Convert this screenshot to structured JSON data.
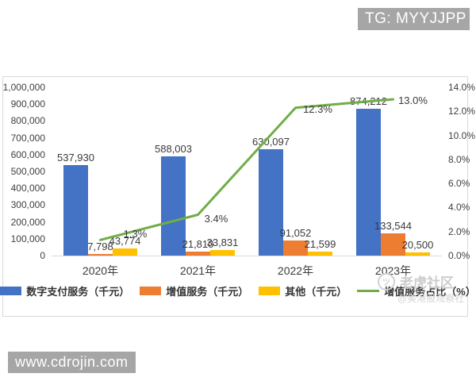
{
  "badges": {
    "telegram": "TG: MYYJJPP",
    "website": "www.cdrojin.com"
  },
  "watermarks": {
    "community": "老虎社区",
    "account": "@美港股观察社"
  },
  "chart_data": {
    "type": "bar",
    "subtype": "grouped bars with secondary-axis line",
    "categories": [
      "2020年",
      "2021年",
      "2022年",
      "2023年"
    ],
    "series": [
      {
        "name": "数字支付服务（千元）",
        "kind": "bar",
        "color": "#4472C4",
        "values": [
          537930,
          588003,
          630097,
          874212
        ],
        "labels": [
          "537,930",
          "588,003",
          "630,097",
          "874,212"
        ]
      },
      {
        "name": "增值服务（千元）",
        "kind": "bar",
        "color": "#ED7D31",
        "values": [
          7798,
          21810,
          91052,
          133544
        ],
        "labels": [
          "7,798",
          "21,810",
          "91,052",
          "133,544"
        ]
      },
      {
        "name": "其他（千元）",
        "kind": "bar",
        "color": "#FFC000",
        "values": [
          43774,
          33831,
          21599,
          20500
        ],
        "labels": [
          "43,774",
          "33,831",
          "21,599",
          "20,500"
        ]
      },
      {
        "name": "增值服务占比（%）",
        "kind": "line",
        "color": "#70AD47",
        "values": [
          1.3,
          3.4,
          12.3,
          13.0
        ],
        "labels": [
          "1.3%",
          "3.4%",
          "12.3%",
          "13.0%"
        ]
      }
    ],
    "left_axis": {
      "min": 0,
      "max": 1000000,
      "step": 100000,
      "ticks": [
        "0",
        "100,000",
        "200,000",
        "300,000",
        "400,000",
        "500,000",
        "600,000",
        "700,000",
        "800,000",
        "900,000",
        "1,000,000"
      ]
    },
    "right_axis": {
      "min": 0,
      "max": 14,
      "step": 2,
      "ticks": [
        "0.0%",
        "2.0%",
        "4.0%",
        "6.0%",
        "8.0%",
        "10.0%",
        "12.0%",
        "14.0%"
      ]
    },
    "legend_position": "bottom",
    "grid": false
  }
}
